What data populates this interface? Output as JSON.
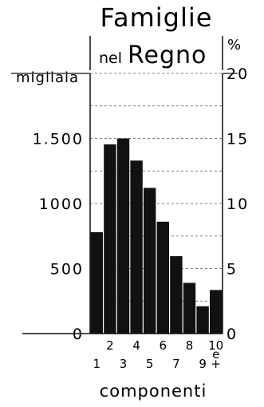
{
  "title": {
    "line1": "Famiglie",
    "line2_small": "nel",
    "line2_big": "Regno"
  },
  "chart_data": {
    "type": "bar",
    "categories": [
      "1",
      "2",
      "3",
      "4",
      "5",
      "6",
      "7",
      "8",
      "9",
      "10 e +"
    ],
    "values": [
      780,
      1455,
      1500,
      1330,
      1120,
      860,
      595,
      390,
      210,
      335
    ],
    "ylabel": "migliaia",
    "ylabel_right": "%",
    "ylim": [
      0,
      2000
    ],
    "ylim_right": [
      0,
      20
    ],
    "yticks": [
      {
        "value": 0,
        "label": "0"
      },
      {
        "value": 500,
        "label": "500"
      },
      {
        "value": 1000,
        "label": "1000"
      },
      {
        "value": 1500,
        "label": "1.500"
      }
    ],
    "yticks_right": [
      "0",
      "5",
      "10",
      "15",
      "20"
    ],
    "xticks_upper": [
      "2",
      "4",
      "6",
      "8",
      "10"
    ],
    "xticks_lower": [
      "1",
      "3",
      "5",
      "7",
      "9"
    ],
    "xtick_last": {
      "superscript": "e",
      "below": "+"
    },
    "xlabel": "componenti",
    "grid": "dashed horizontal",
    "bar_color": "#111111"
  }
}
